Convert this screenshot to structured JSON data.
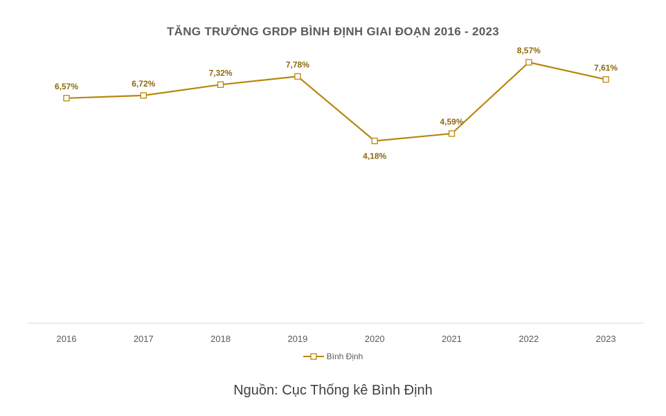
{
  "chart_data": {
    "type": "line",
    "title": "TĂNG TRƯỞNG GRDP BÌNH ĐỊNH GIAI ĐOẠN 2016 - 2023",
    "categories": [
      "2016",
      "2017",
      "2018",
      "2019",
      "2020",
      "2021",
      "2022",
      "2023"
    ],
    "series": [
      {
        "name": "Bình Định",
        "values": [
          6.57,
          6.72,
          7.32,
          7.78,
          4.18,
          4.59,
          8.57,
          7.61
        ],
        "labels": [
          "6,57%",
          "6,72%",
          "7,32%",
          "7,78%",
          "4,18%",
          "4,59%",
          "8,57%",
          "7,61%"
        ],
        "color": "#b8860b"
      }
    ],
    "ylim": [
      -6,
      10
    ],
    "grid": false,
    "legend_position": "bottom",
    "marker": "square"
  },
  "source": "Nguồn: Cục Thống kê Bình Định"
}
